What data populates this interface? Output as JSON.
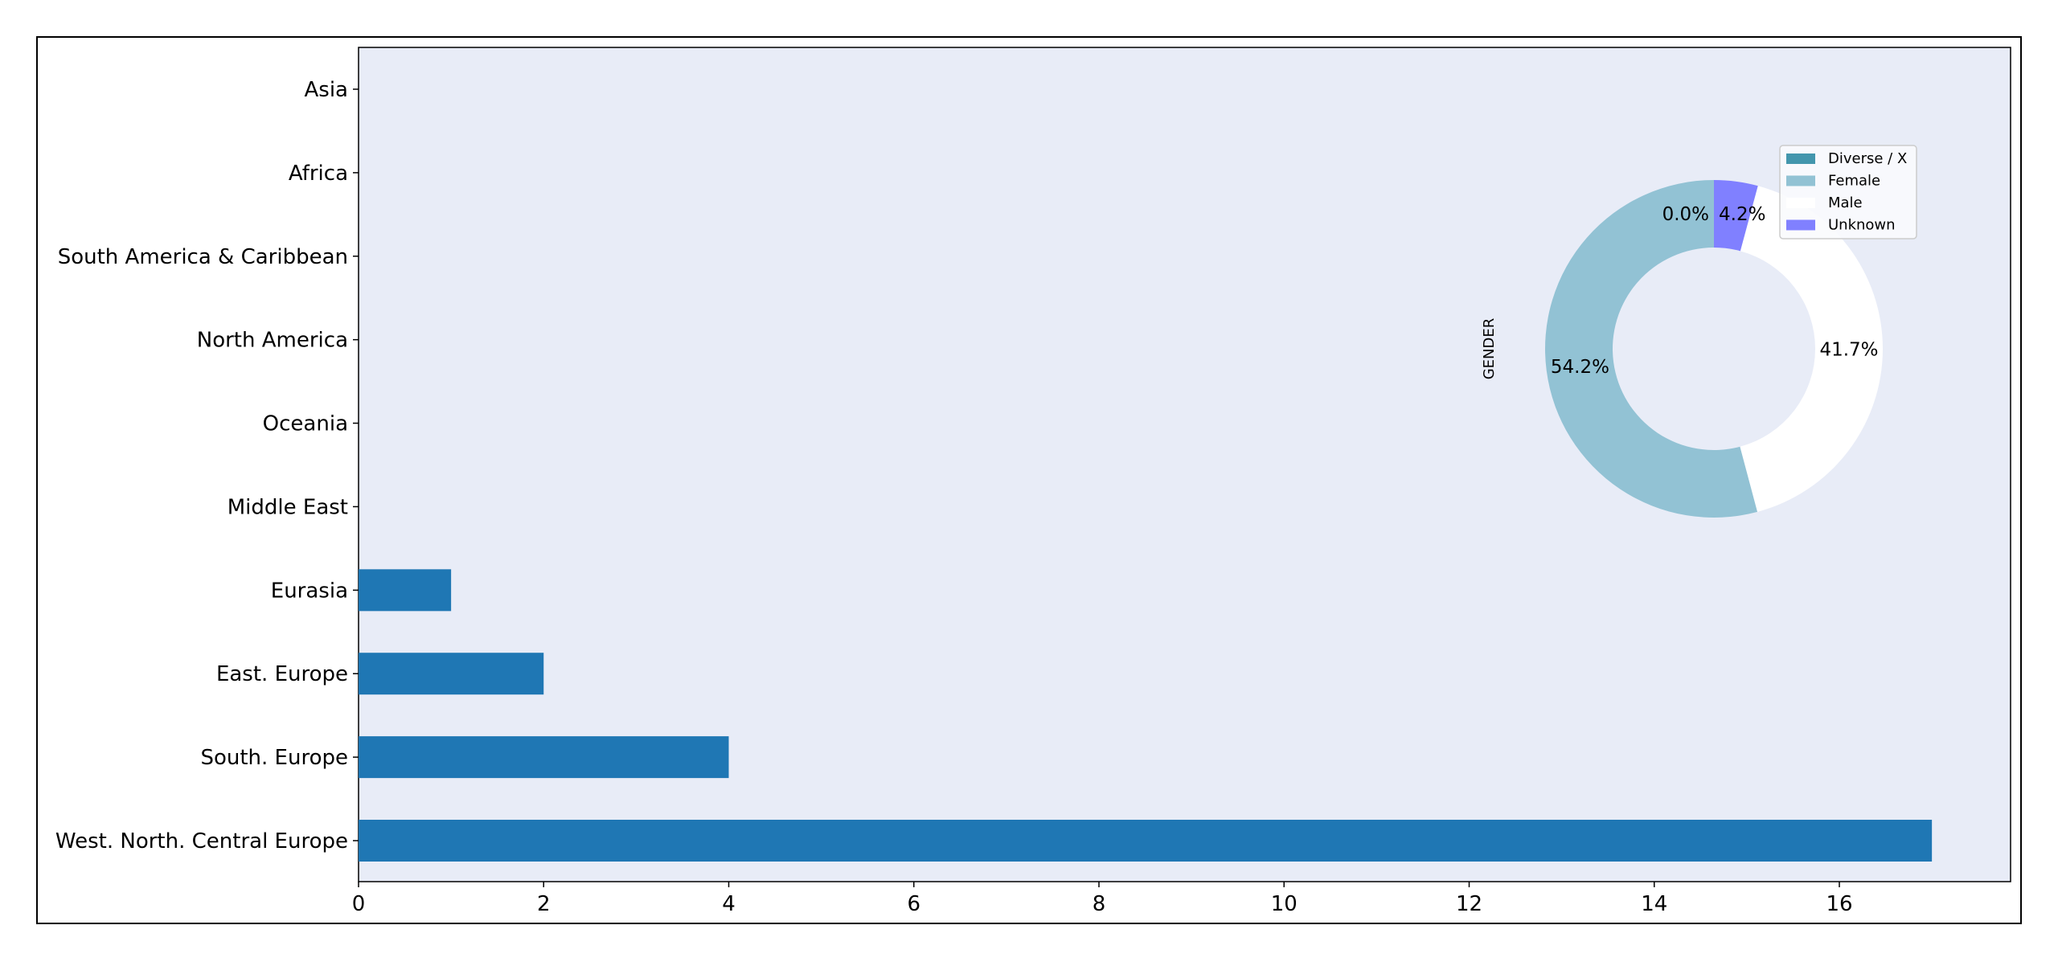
{
  "chart_data": [
    {
      "type": "bar",
      "orientation": "horizontal",
      "categories": [
        "Asia",
        "Africa",
        "South America & Caribbean",
        "North America",
        "Oceania",
        "Middle East",
        "Eurasia",
        "East. Europe",
        "South. Europe",
        "West. North. Central Europe"
      ],
      "values": [
        0,
        0,
        0,
        0,
        0,
        0,
        1,
        2,
        4,
        17
      ],
      "xlim": [
        0,
        17.85
      ],
      "xticks": [
        0,
        2,
        4,
        6,
        8,
        10,
        12,
        14,
        16
      ],
      "grid": false,
      "colors": {
        "bar": "#1f77b4",
        "background": "#e8ecf7"
      }
    },
    {
      "type": "pie",
      "donut": true,
      "ylabel": "GENDER",
      "categories": [
        "Diverse / X",
        "Female",
        "Male",
        "Unknown"
      ],
      "values": [
        0.0,
        54.2,
        41.7,
        4.2
      ],
      "labels": [
        "0.0%",
        "54.2%",
        "41.7%",
        "4.2%"
      ],
      "colors": [
        "#4396ad",
        "#92c2d4",
        "#ffffff",
        "#8080ff"
      ],
      "legend": "top-right"
    }
  ]
}
